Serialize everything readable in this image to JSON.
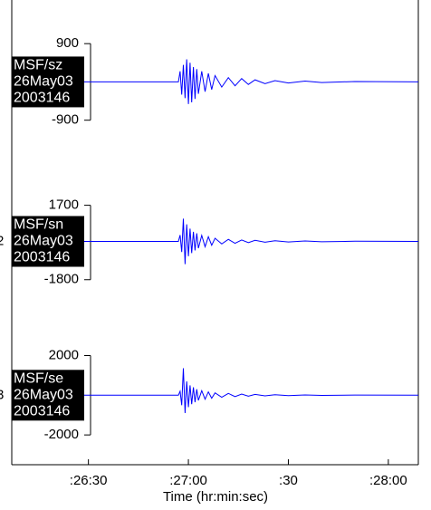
{
  "chart_data": [
    {
      "type": "line",
      "color": "#0000ff",
      "labels": [
        "MSF/sz",
        "26May03",
        "2003146"
      ],
      "ylim": [
        -2000,
        1500
      ],
      "yticks": [
        900,
        -900
      ],
      "x": [
        1567,
        1617,
        1617.5,
        1618,
        1618.5,
        1619,
        1619.5,
        1620,
        1620.5,
        1621,
        1621.5,
        1622,
        1622.5,
        1623,
        1624,
        1625,
        1626,
        1627,
        1628,
        1630,
        1632,
        1634,
        1636,
        1638,
        1640,
        1643,
        1646,
        1650,
        1655,
        1660,
        1670,
        1689
      ],
      "values": [
        0,
        0,
        250,
        -300,
        400,
        -380,
        530,
        -520,
        450,
        -480,
        350,
        -400,
        300,
        -280,
        250,
        -230,
        200,
        -180,
        150,
        -120,
        100,
        -90,
        80,
        -60,
        50,
        -40,
        30,
        -25,
        20,
        -15,
        10,
        0
      ]
    },
    {
      "type": "line",
      "color": "#0000ff",
      "trace_number": "2",
      "labels": [
        "MSF/sn",
        "26May03",
        "2003146"
      ],
      "ylim": [
        -3500,
        3500
      ],
      "yticks": [
        1700,
        -1800
      ],
      "x": [
        1567,
        1617,
        1617.5,
        1618,
        1618.5,
        1619,
        1619.5,
        1620,
        1620.5,
        1621,
        1621.5,
        1622,
        1622.5,
        1623,
        1624,
        1625,
        1626,
        1627,
        1628,
        1630,
        1632,
        1634,
        1636,
        1638,
        1640,
        1643,
        1646,
        1650,
        1655,
        1660,
        1670,
        1689
      ],
      "values": [
        0,
        0,
        300,
        -500,
        1070,
        -1070,
        800,
        -700,
        600,
        -550,
        450,
        -420,
        380,
        -320,
        280,
        -250,
        220,
        -180,
        150,
        -120,
        100,
        -90,
        70,
        -60,
        50,
        -40,
        35,
        -25,
        20,
        -15,
        10,
        0
      ]
    },
    {
      "type": "line",
      "color": "#0000ff",
      "trace_number": "3",
      "labels": [
        "MSF/se",
        "26May03",
        "2003146"
      ],
      "ylim": [
        -3500,
        4000
      ],
      "yticks": [
        2000,
        -2000
      ],
      "x": [
        1567,
        1617,
        1617.5,
        1618,
        1618.5,
        1619,
        1619.5,
        1620,
        1620.5,
        1621,
        1621.5,
        1622,
        1622.5,
        1623,
        1624,
        1625,
        1626,
        1627,
        1628,
        1630,
        1632,
        1634,
        1636,
        1638,
        1640,
        1643,
        1646,
        1650,
        1655,
        1660,
        1670,
        1689
      ],
      "values": [
        0,
        0,
        200,
        -500,
        1360,
        -900,
        700,
        -600,
        500,
        -450,
        400,
        -350,
        300,
        -260,
        230,
        -200,
        170,
        -150,
        120,
        -100,
        90,
        -70,
        60,
        -50,
        40,
        -30,
        25,
        -20,
        15,
        -10,
        8,
        0
      ],
      "xlim": [
        1567,
        1689
      ],
      "xticks": [
        {
          "value": 1590,
          "label": ":26:30"
        },
        {
          "value": 1620,
          "label": ":27:00"
        },
        {
          "value": 1650,
          "label": ":30"
        },
        {
          "value": 1680,
          "label": ":28:00"
        }
      ],
      "xlabel": "Time (hr:min:sec)"
    }
  ]
}
